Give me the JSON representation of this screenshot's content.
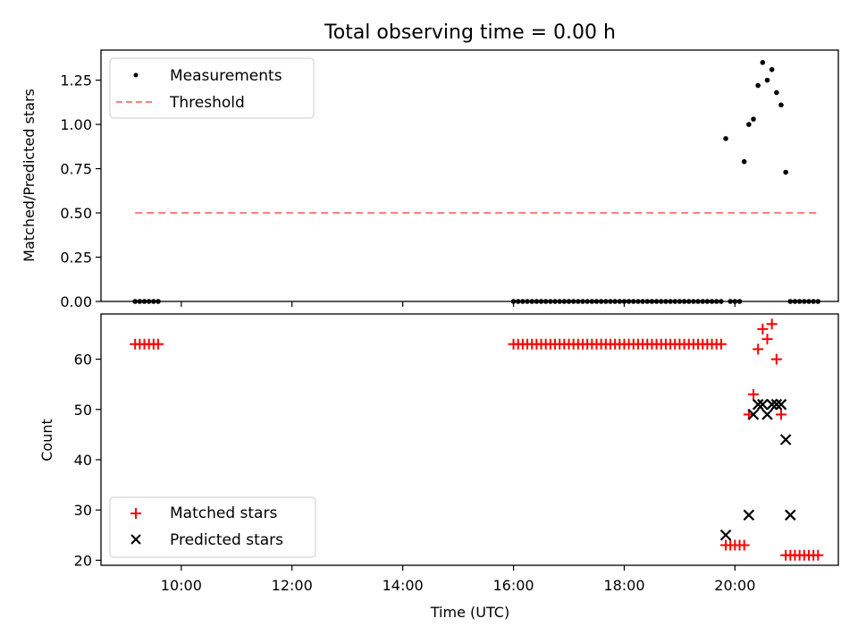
{
  "chart_data": [
    {
      "type": "scatter",
      "title": "Total observing time = 0.00 h",
      "ylabel": "Matched/Predicted stars",
      "ylim": [
        0,
        1.42
      ],
      "xlim": [
        "08:33",
        "21:52"
      ],
      "yticks": [
        "0.00",
        "0.25",
        "0.50",
        "0.75",
        "1.00",
        "1.25"
      ],
      "grid": false,
      "legend_position": "upper-left",
      "series": [
        {
          "name": "Measurements",
          "marker": "dot",
          "color": "#000000",
          "x": [
            "09:10",
            "09:15",
            "09:20",
            "09:25",
            "09:30",
            "09:35",
            "16:00",
            "16:05",
            "16:10",
            "16:15",
            "16:20",
            "16:25",
            "16:30",
            "16:35",
            "16:40",
            "16:45",
            "16:50",
            "16:55",
            "17:00",
            "17:05",
            "17:10",
            "17:15",
            "17:20",
            "17:25",
            "17:30",
            "17:35",
            "17:40",
            "17:45",
            "17:50",
            "17:55",
            "18:00",
            "18:05",
            "18:10",
            "18:15",
            "18:20",
            "18:25",
            "18:30",
            "18:35",
            "18:40",
            "18:45",
            "18:50",
            "18:55",
            "19:00",
            "19:05",
            "19:10",
            "19:15",
            "19:20",
            "19:25",
            "19:30",
            "19:35",
            "19:40",
            "19:45",
            "19:50",
            "19:55",
            "20:00",
            "20:05",
            "20:10",
            "20:15",
            "20:20",
            "20:25",
            "20:30",
            "20:35",
            "20:40",
            "20:45",
            "20:50",
            "20:55",
            "21:00",
            "21:05",
            "21:10",
            "21:15",
            "21:20",
            "21:25",
            "21:30"
          ],
          "y": [
            0,
            0,
            0,
            0,
            0,
            0,
            0,
            0,
            0,
            0,
            0,
            0,
            0,
            0,
            0,
            0,
            0,
            0,
            0,
            0,
            0,
            0,
            0,
            0,
            0,
            0,
            0,
            0,
            0,
            0,
            0,
            0,
            0,
            0,
            0,
            0,
            0,
            0,
            0,
            0,
            0,
            0,
            0,
            0,
            0,
            0,
            0,
            0,
            0,
            0,
            0,
            0,
            0.92,
            0,
            0,
            0,
            0.79,
            1.0,
            1.03,
            1.22,
            1.35,
            1.25,
            1.31,
            1.18,
            1.11,
            0.73,
            0,
            0,
            0,
            0,
            0,
            0,
            0
          ]
        },
        {
          "name": "Threshold",
          "marker": "dashed-line",
          "color": "#ff7f7f",
          "x": [
            "09:10",
            "21:30"
          ],
          "y": [
            0.5,
            0.5
          ]
        }
      ]
    },
    {
      "type": "scatter",
      "xlabel": "Time (UTC)",
      "ylabel": "Count",
      "ylim": [
        19,
        69
      ],
      "xlim": [
        "08:33",
        "21:52"
      ],
      "yticks": [
        "20",
        "30",
        "40",
        "50",
        "60"
      ],
      "xticks": [
        "10:00",
        "12:00",
        "14:00",
        "16:00",
        "18:00",
        "20:00"
      ],
      "grid": false,
      "legend_position": "lower-left",
      "series": [
        {
          "name": "Matched stars",
          "marker": "plus",
          "color": "#ff0000",
          "x": [
            "09:10",
            "09:15",
            "09:20",
            "09:25",
            "09:30",
            "09:35",
            "16:00",
            "16:05",
            "16:10",
            "16:15",
            "16:20",
            "16:25",
            "16:30",
            "16:35",
            "16:40",
            "16:45",
            "16:50",
            "16:55",
            "17:00",
            "17:05",
            "17:10",
            "17:15",
            "17:20",
            "17:25",
            "17:30",
            "17:35",
            "17:40",
            "17:45",
            "17:50",
            "17:55",
            "18:00",
            "18:05",
            "18:10",
            "18:15",
            "18:20",
            "18:25",
            "18:30",
            "18:35",
            "18:40",
            "18:45",
            "18:50",
            "18:55",
            "19:00",
            "19:05",
            "19:10",
            "19:15",
            "19:20",
            "19:25",
            "19:30",
            "19:35",
            "19:40",
            "19:45",
            "19:50",
            "19:55",
            "20:00",
            "20:05",
            "20:10",
            "20:15",
            "20:20",
            "20:25",
            "20:30",
            "20:35",
            "20:40",
            "20:45",
            "20:50",
            "20:55",
            "21:00",
            "21:05",
            "21:10",
            "21:15",
            "21:20",
            "21:25",
            "21:30"
          ],
          "y": [
            63,
            63,
            63,
            63,
            63,
            63,
            63,
            63,
            63,
            63,
            63,
            63,
            63,
            63,
            63,
            63,
            63,
            63,
            63,
            63,
            63,
            63,
            63,
            63,
            63,
            63,
            63,
            63,
            63,
            63,
            63,
            63,
            63,
            63,
            63,
            63,
            63,
            63,
            63,
            63,
            63,
            63,
            63,
            63,
            63,
            63,
            63,
            63,
            63,
            63,
            63,
            63,
            23,
            23,
            23,
            23,
            23,
            49,
            53,
            62,
            66,
            64,
            67,
            60,
            49,
            21,
            21,
            21,
            21,
            21,
            21,
            21,
            21
          ]
        },
        {
          "name": "Predicted stars",
          "marker": "x",
          "color": "#000000",
          "x": [
            "19:50",
            "20:15",
            "20:20",
            "20:25",
            "20:30",
            "20:35",
            "20:40",
            "20:45",
            "20:50",
            "20:55",
            "21:00"
          ],
          "y": [
            25,
            29,
            49,
            51,
            51,
            49,
            51,
            51,
            51,
            44,
            29
          ]
        }
      ]
    }
  ]
}
